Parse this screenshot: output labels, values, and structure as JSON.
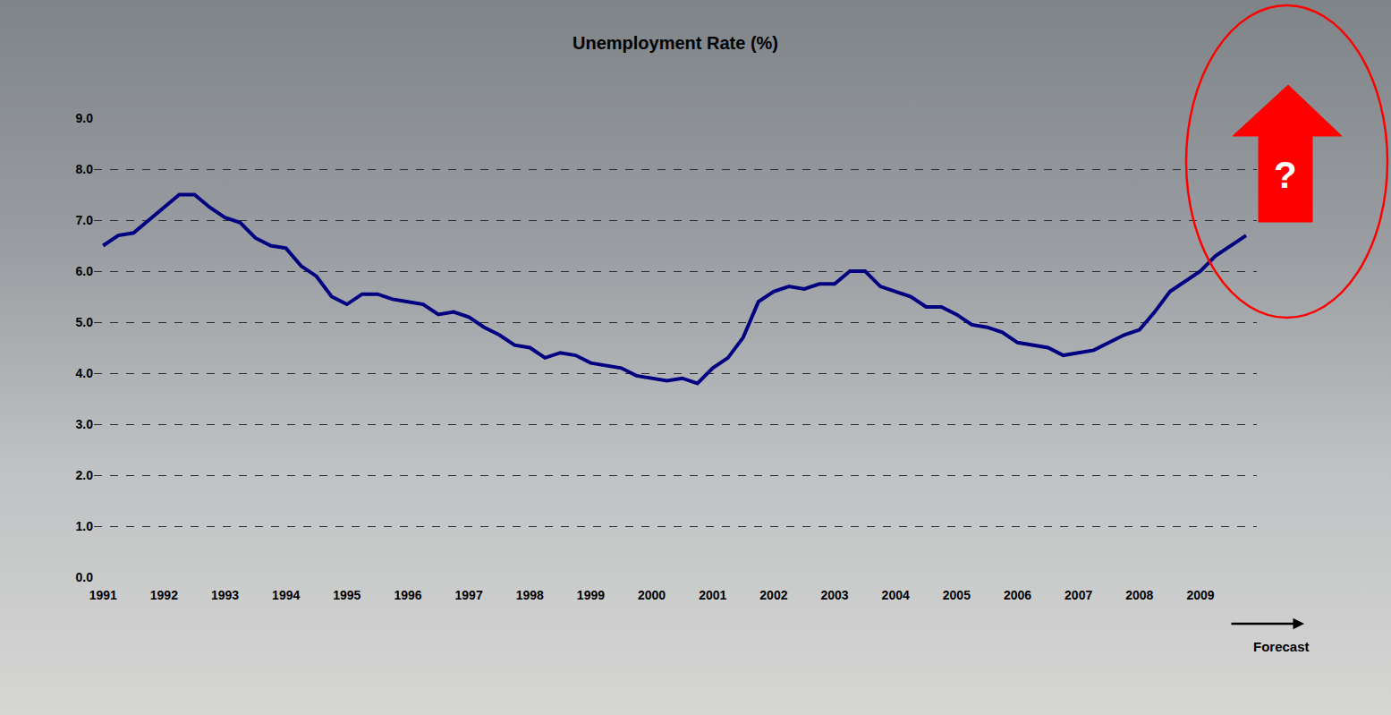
{
  "chart_data": {
    "type": "line",
    "title": "Unemployment Rate (%)",
    "categories": [
      "1991",
      null,
      null,
      null,
      "1992",
      null,
      null,
      null,
      "1993",
      null,
      null,
      null,
      "1994",
      null,
      null,
      null,
      "1995",
      null,
      null,
      null,
      "1996",
      null,
      null,
      null,
      "1997",
      null,
      null,
      null,
      "1998",
      null,
      null,
      null,
      "1999",
      null,
      null,
      null,
      "2000",
      null,
      null,
      null,
      "2001",
      null,
      null,
      null,
      "2002",
      null,
      null,
      null,
      "2003",
      null,
      null,
      null,
      "2004",
      null,
      null,
      null,
      "2005",
      null,
      null,
      null,
      "2006",
      null,
      null,
      null,
      "2007",
      null,
      null,
      null,
      "2008",
      null,
      null,
      null,
      "2009",
      null,
      null,
      null
    ],
    "values": [
      6.5,
      6.7,
      6.75,
      7.0,
      7.25,
      7.5,
      7.5,
      7.25,
      7.05,
      6.95,
      6.65,
      6.5,
      6.45,
      6.1,
      5.9,
      5.5,
      5.35,
      5.55,
      5.55,
      5.45,
      5.4,
      5.35,
      5.15,
      5.2,
      5.1,
      4.9,
      4.75,
      4.55,
      4.5,
      4.3,
      4.4,
      4.35,
      4.2,
      4.15,
      4.1,
      3.95,
      3.9,
      3.85,
      3.9,
      3.8,
      4.1,
      4.3,
      4.7,
      5.4,
      5.6,
      5.7,
      5.65,
      5.75,
      5.75,
      6.0,
      6.0,
      5.7,
      5.6,
      5.5,
      5.3,
      5.3,
      5.15,
      4.95,
      4.9,
      4.8,
      4.6,
      4.55,
      4.5,
      4.35,
      4.4,
      4.45,
      4.6,
      4.75,
      4.85,
      5.2,
      5.6,
      5.8,
      6.0,
      6.3,
      6.5,
      6.7
    ],
    "color": "#000080",
    "ylim": [
      0,
      9
    ],
    "yticks": [
      {
        "value": 0,
        "label": "0.0"
      },
      {
        "value": 1,
        "label": "1.0"
      },
      {
        "value": 2,
        "label": "2.0"
      },
      {
        "value": 3,
        "label": "3.0"
      },
      {
        "value": 4,
        "label": "4.0"
      },
      {
        "value": 5,
        "label": "5.0"
      },
      {
        "value": 6,
        "label": "6.0"
      },
      {
        "value": 7,
        "label": "7.0"
      },
      {
        "value": 8,
        "label": "8.0"
      },
      {
        "value": 9,
        "label": "9.0"
      }
    ],
    "grid": true,
    "annotations": [
      "Forecast",
      "?"
    ]
  }
}
